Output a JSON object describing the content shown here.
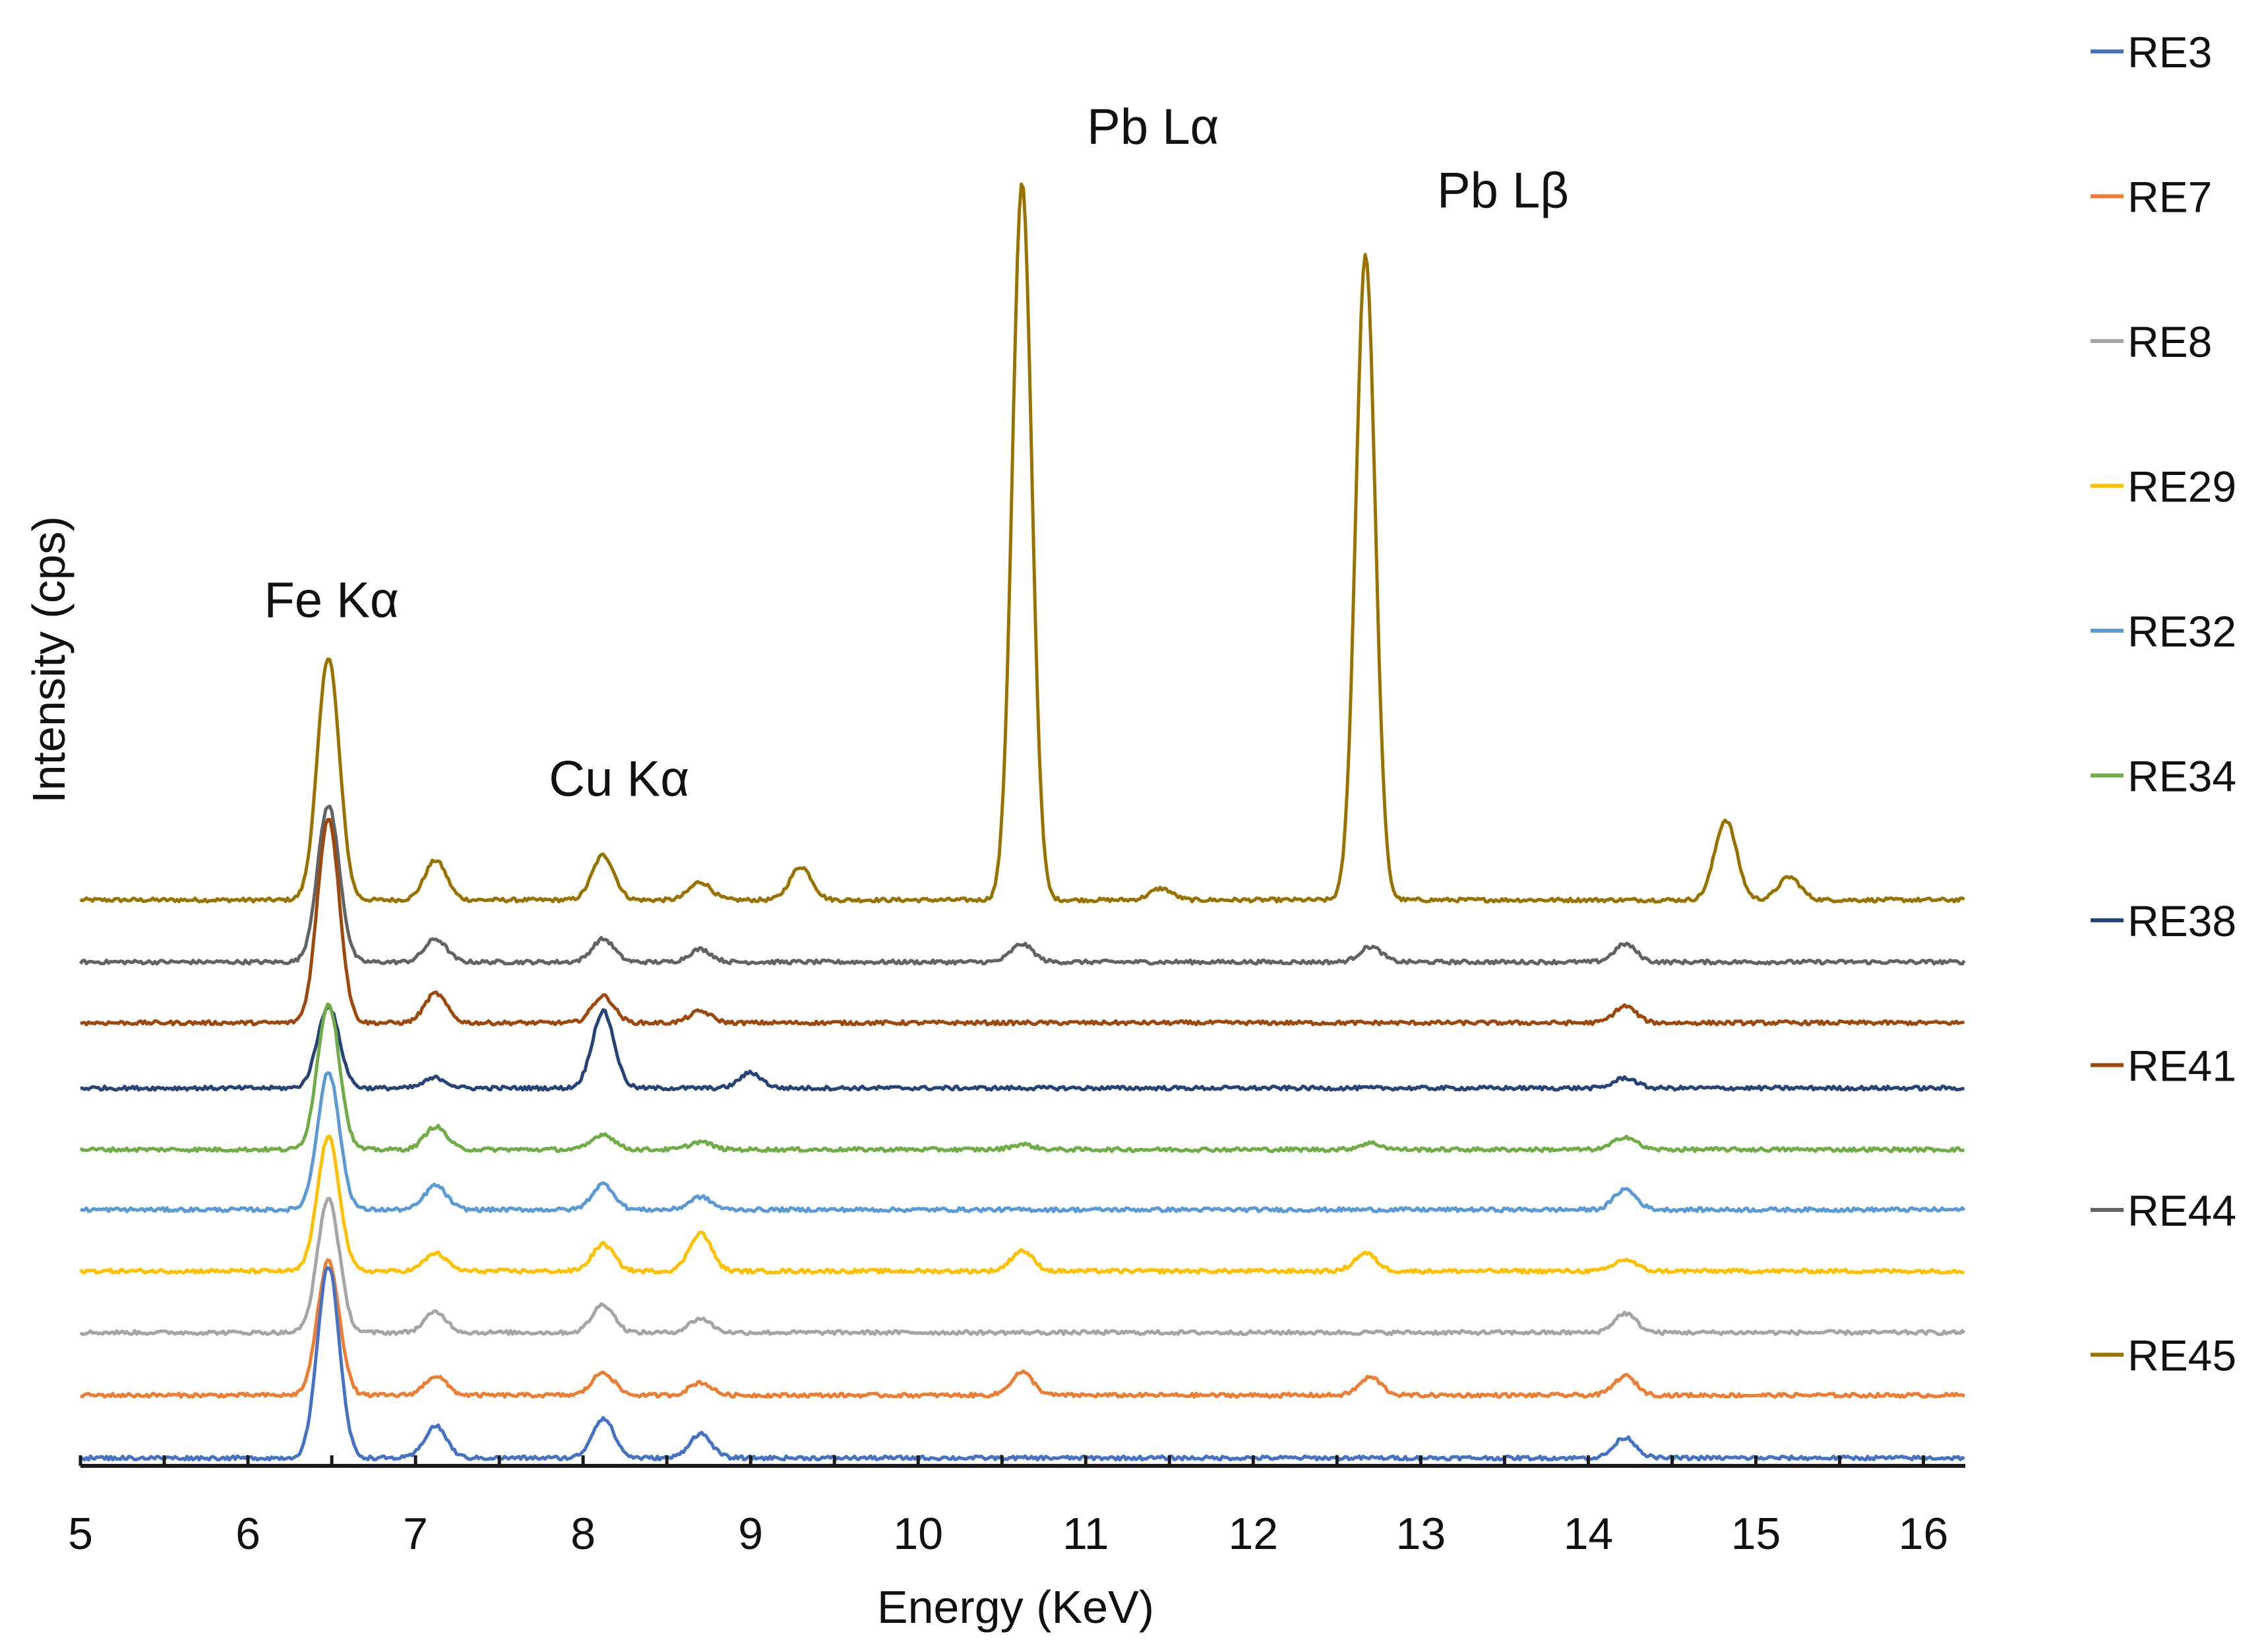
{
  "chart_data": {
    "type": "line",
    "title": "",
    "xlabel": "Energy (KeV)",
    "ylabel": "Intensity (cps)",
    "xlim": [
      5,
      16.25
    ],
    "x_ticks": [
      "5",
      "6",
      "7",
      "8",
      "9",
      "10",
      "11",
      "12",
      "13",
      "14",
      "15",
      "16"
    ],
    "x_minor_step": 0.5,
    "grid": false,
    "y_tick_labels": false,
    "stacked_offset": true,
    "legend": {
      "placement": "right",
      "order": [
        "RE3",
        "RE7",
        "RE8",
        "RE29",
        "RE32",
        "RE34",
        "RE38",
        "RE41",
        "RE44",
        "RE45"
      ]
    },
    "annotations": [
      {
        "text": "Fe Kα",
        "x": 6.45,
        "series": "RE45"
      },
      {
        "text": "Cu Kα",
        "x": 8.15,
        "series": "RE45"
      },
      {
        "text": "Pb Lα",
        "x": 10.85,
        "series": "RE45"
      },
      {
        "text": "Pb Lβ",
        "x": 12.9,
        "series": "RE45"
      }
    ],
    "series": [
      {
        "name": "RE3",
        "color": "#4472c4",
        "baseline": 0,
        "peaks": [
          [
            6.48,
            300
          ],
          [
            7.12,
            50
          ],
          [
            8.12,
            62
          ],
          [
            8.7,
            38
          ],
          [
            14.22,
            32
          ]
        ]
      },
      {
        "name": "RE7",
        "color": "#ed7d31",
        "baseline": 98,
        "peaks": [
          [
            6.48,
            210
          ],
          [
            7.12,
            30
          ],
          [
            8.12,
            36
          ],
          [
            8.7,
            20
          ],
          [
            10.62,
            36
          ],
          [
            12.7,
            28
          ],
          [
            14.22,
            30
          ]
        ]
      },
      {
        "name": "RE8",
        "color": "#a5a5a5",
        "baseline": 196,
        "peaks": [
          [
            6.48,
            210
          ],
          [
            7.12,
            32
          ],
          [
            8.12,
            44
          ],
          [
            8.7,
            22
          ],
          [
            14.22,
            30
          ]
        ]
      },
      {
        "name": "RE29",
        "color": "#ffc000",
        "baseline": 292,
        "peaks": [
          [
            6.48,
            210
          ],
          [
            7.12,
            28
          ],
          [
            8.12,
            42
          ],
          [
            8.7,
            60
          ],
          [
            10.62,
            32
          ],
          [
            12.67,
            28
          ],
          [
            14.22,
            18
          ]
        ]
      },
      {
        "name": "RE32",
        "color": "#5b9bd5",
        "baseline": 388,
        "peaks": [
          [
            6.48,
            215
          ],
          [
            7.12,
            38
          ],
          [
            8.12,
            40
          ],
          [
            8.7,
            20
          ],
          [
            14.22,
            32
          ]
        ]
      },
      {
        "name": "RE34",
        "color": "#70ad47",
        "baseline": 482,
        "peaks": [
          [
            6.48,
            228
          ],
          [
            7.12,
            36
          ],
          [
            8.12,
            24
          ],
          [
            8.7,
            12
          ],
          [
            10.62,
            8
          ],
          [
            12.7,
            10
          ],
          [
            14.22,
            20
          ]
        ]
      },
      {
        "name": "RE38",
        "color": "#264478",
        "baseline": 578,
        "peaks": [
          [
            6.48,
            128
          ],
          [
            7.12,
            16
          ],
          [
            8.12,
            120
          ],
          [
            9.0,
            24
          ],
          [
            14.22,
            16
          ]
        ]
      },
      {
        "name": "RE41",
        "color": "#9e480e",
        "baseline": 680,
        "peaks": [
          [
            6.48,
            320
          ],
          [
            7.12,
            46
          ],
          [
            8.12,
            42
          ],
          [
            8.7,
            18
          ],
          [
            14.22,
            26
          ]
        ]
      },
      {
        "name": "RE44",
        "color": "#636363",
        "baseline": 775,
        "peaks": [
          [
            6.48,
            245
          ],
          [
            7.12,
            36
          ],
          [
            8.12,
            36
          ],
          [
            8.7,
            20
          ],
          [
            10.62,
            28
          ],
          [
            12.7,
            24
          ],
          [
            14.22,
            28
          ]
        ]
      },
      {
        "name": "RE45",
        "color": "#997300",
        "baseline": 872,
        "peaks": [
          [
            6.48,
            380
          ],
          [
            7.12,
            62
          ],
          [
            8.12,
            70
          ],
          [
            8.7,
            28
          ],
          [
            9.3,
            52
          ],
          [
            10.62,
            1120
          ],
          [
            11.45,
            18
          ],
          [
            12.67,
            1010
          ],
          [
            14.82,
            125
          ],
          [
            15.2,
            36
          ]
        ]
      }
    ]
  }
}
